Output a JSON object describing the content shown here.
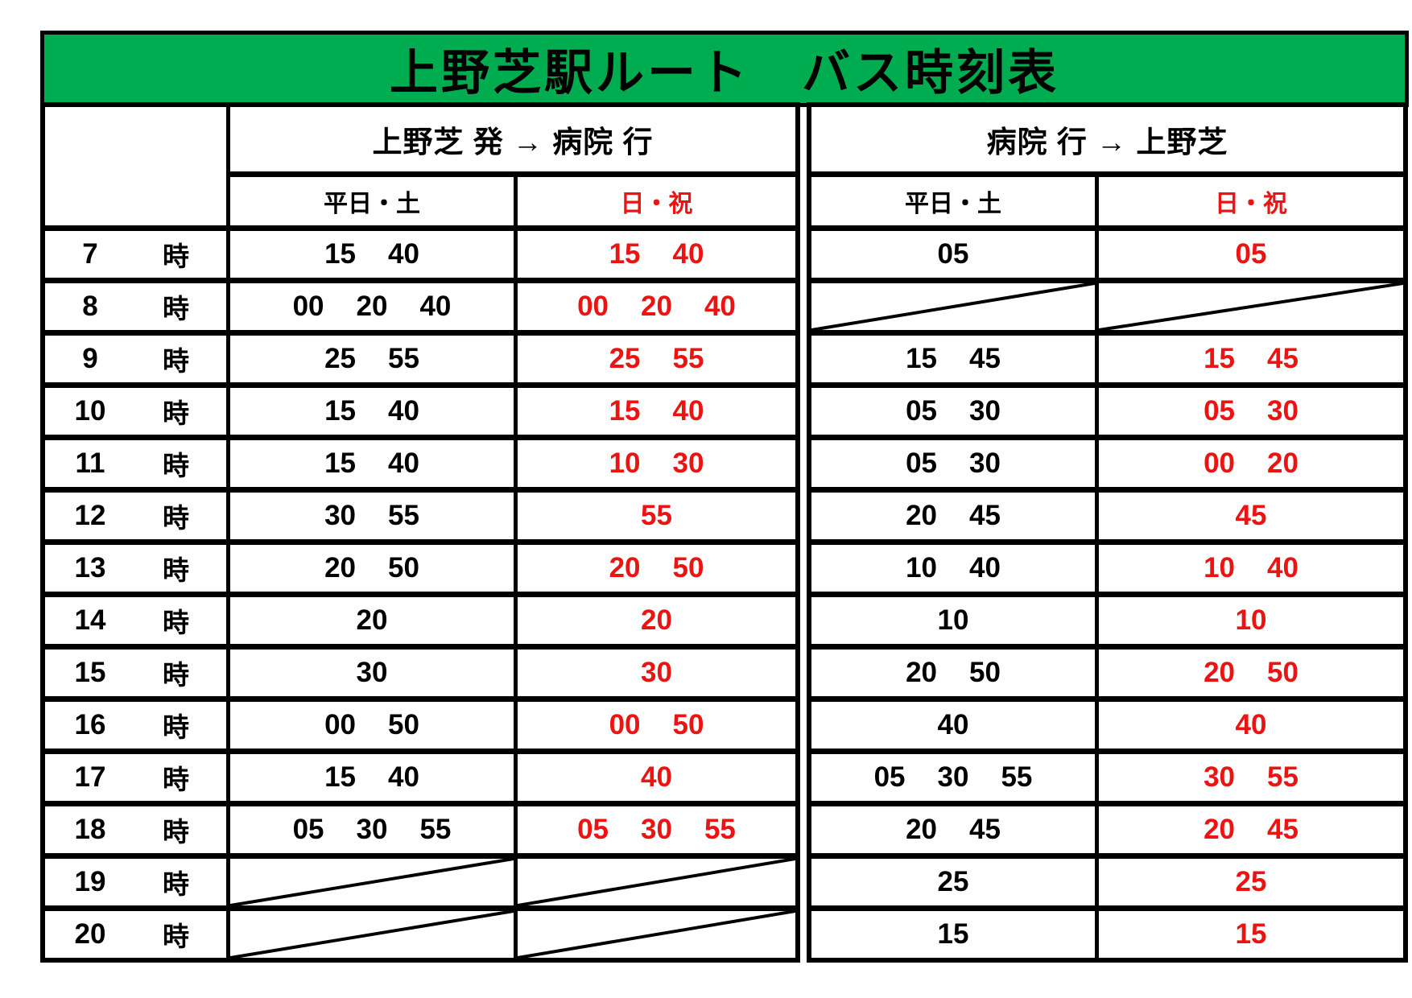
{
  "title": "上野芝駅ルート　バス時刻表",
  "colors": {
    "title_bg": "#00AC50",
    "holiday_text": "#EC1313",
    "text": "#000000"
  },
  "hour_suffix": "時",
  "outbound": {
    "label": "上野芝 発 → 病院 行",
    "weekday_header": "平日・土",
    "holiday_header": "日・祝"
  },
  "inbound": {
    "label": "病院 行 → 上野芝",
    "weekday_header": "平日・土",
    "holiday_header": "日・祝"
  },
  "rows": [
    {
      "hour": "7",
      "out_weekday": [
        "15",
        "40"
      ],
      "out_holiday": [
        "15",
        "40"
      ],
      "in_weekday": [
        "05"
      ],
      "in_holiday": [
        "05"
      ]
    },
    {
      "hour": "8",
      "out_weekday": [
        "00",
        "20",
        "40"
      ],
      "out_holiday": [
        "00",
        "20",
        "40"
      ],
      "in_weekday": null,
      "in_holiday": null
    },
    {
      "hour": "9",
      "out_weekday": [
        "25",
        "55"
      ],
      "out_holiday": [
        "25",
        "55"
      ],
      "in_weekday": [
        "15",
        "45"
      ],
      "in_holiday": [
        "15",
        "45"
      ]
    },
    {
      "hour": "10",
      "out_weekday": [
        "15",
        "40"
      ],
      "out_holiday": [
        "15",
        "40"
      ],
      "in_weekday": [
        "05",
        "30"
      ],
      "in_holiday": [
        "05",
        "30"
      ]
    },
    {
      "hour": "11",
      "out_weekday": [
        "15",
        "40"
      ],
      "out_holiday": [
        "10",
        "30"
      ],
      "in_weekday": [
        "05",
        "30"
      ],
      "in_holiday": [
        "00",
        "20"
      ]
    },
    {
      "hour": "12",
      "out_weekday": [
        "30",
        "55"
      ],
      "out_holiday": [
        "55"
      ],
      "in_weekday": [
        "20",
        "45"
      ],
      "in_holiday": [
        "45"
      ]
    },
    {
      "hour": "13",
      "out_weekday": [
        "20",
        "50"
      ],
      "out_holiday": [
        "20",
        "50"
      ],
      "in_weekday": [
        "10",
        "40"
      ],
      "in_holiday": [
        "10",
        "40"
      ]
    },
    {
      "hour": "14",
      "out_weekday": [
        "20"
      ],
      "out_holiday": [
        "20"
      ],
      "in_weekday": [
        "10"
      ],
      "in_holiday": [
        "10"
      ]
    },
    {
      "hour": "15",
      "out_weekday": [
        "30"
      ],
      "out_holiday": [
        "30"
      ],
      "in_weekday": [
        "20",
        "50"
      ],
      "in_holiday": [
        "20",
        "50"
      ]
    },
    {
      "hour": "16",
      "out_weekday": [
        "00",
        "50"
      ],
      "out_holiday": [
        "00",
        "50"
      ],
      "in_weekday": [
        "40"
      ],
      "in_holiday": [
        "40"
      ]
    },
    {
      "hour": "17",
      "out_weekday": [
        "15",
        "40"
      ],
      "out_holiday": [
        "40"
      ],
      "in_weekday": [
        "05",
        "30",
        "55"
      ],
      "in_holiday": [
        "30",
        "55"
      ]
    },
    {
      "hour": "18",
      "out_weekday": [
        "05",
        "30",
        "55"
      ],
      "out_holiday": [
        "05",
        "30",
        "55"
      ],
      "in_weekday": [
        "20",
        "45"
      ],
      "in_holiday": [
        "20",
        "45"
      ]
    },
    {
      "hour": "19",
      "out_weekday": null,
      "out_holiday": null,
      "in_weekday": [
        "25"
      ],
      "in_holiday": [
        "25"
      ]
    },
    {
      "hour": "20",
      "out_weekday": null,
      "out_holiday": null,
      "in_weekday": [
        "15"
      ],
      "in_holiday": [
        "15"
      ]
    }
  ]
}
